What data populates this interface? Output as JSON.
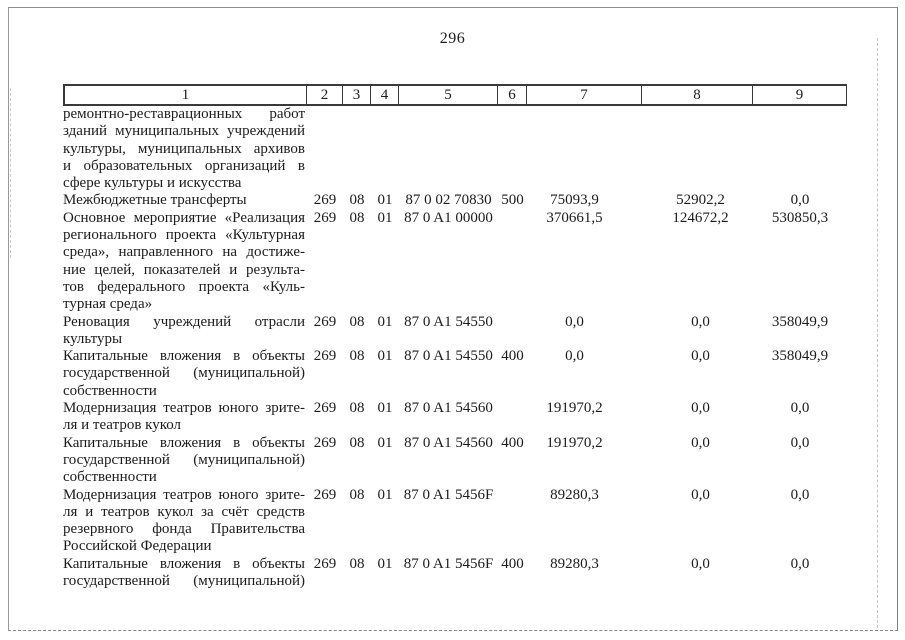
{
  "page": {
    "number": "296"
  },
  "colors": {
    "text": "#1c1c1c",
    "table_border": "#3a3a3a",
    "scan_frame": "#8e8e8e",
    "background": "#ffffff"
  },
  "table": {
    "header": [
      "1",
      "2",
      "3",
      "4",
      "5",
      "6",
      "7",
      "8",
      "9"
    ],
    "rows": [
      {
        "name_lines": [
          "ремонтно-реставрационных работ",
          "зданий муниципальных учреждений",
          "культуры, муниципальных архивов",
          "и образовательных организаций в",
          "сфере культуры и искусства"
        ],
        "col2": "",
        "col3": "",
        "col4": "",
        "col5": "",
        "col6": "",
        "col7": "",
        "col8": "",
        "col9": ""
      },
      {
        "name_lines": [
          "Межбюджетные трансферты"
        ],
        "col2": "269",
        "col3": "08",
        "col4": "01",
        "col5": "87 0 02 70830",
        "col6": "500",
        "col7": "75093,9",
        "col8": "52902,2",
        "col9": "0,0"
      },
      {
        "name_lines": [
          "Основное мероприятие «Реализация",
          "регионального проекта «Культурная",
          "среда», направленного на достиже-",
          "ние целей, показателей и результа-",
          "тов федерального проекта «Куль-",
          "турная среда»"
        ],
        "col2": "269",
        "col3": "08",
        "col4": "01",
        "col5": "87 0 A1 00000",
        "col6": "",
        "col7": "370661,5",
        "col8": "124672,2",
        "col9": "530850,3"
      },
      {
        "name_lines": [
          "Реновация учреждений отрасли",
          "культуры"
        ],
        "col2": "269",
        "col3": "08",
        "col4": "01",
        "col5": "87 0 A1 54550",
        "col6": "",
        "col7": "0,0",
        "col8": "0,0",
        "col9": "358049,9"
      },
      {
        "name_lines": [
          "Капитальные вложения в объекты",
          "государственной (муниципальной)",
          "собственности"
        ],
        "col2": "269",
        "col3": "08",
        "col4": "01",
        "col5": "87 0 A1 54550",
        "col6": "400",
        "col7": "0,0",
        "col8": "0,0",
        "col9": "358049,9"
      },
      {
        "name_lines": [
          "Модернизация театров юного зрите-",
          "ля и театров кукол"
        ],
        "col2": "269",
        "col3": "08",
        "col4": "01",
        "col5": "87 0 A1 54560",
        "col6": "",
        "col7": "191970,2",
        "col8": "0,0",
        "col9": "0,0"
      },
      {
        "name_lines": [
          "Капитальные вложения в объекты",
          "государственной (муниципальной)",
          "собственности"
        ],
        "col2": "269",
        "col3": "08",
        "col4": "01",
        "col5": "87 0 A1 54560",
        "col6": "400",
        "col7": "191970,2",
        "col8": "0,0",
        "col9": "0,0"
      },
      {
        "name_lines": [
          "Модернизация театров юного зрите-",
          "ля и театров кукол за счёт средств",
          "резервного фонда Правительства",
          "Российской Федерации"
        ],
        "col2": "269",
        "col3": "08",
        "col4": "01",
        "col5": "87 0 A1 5456F",
        "col6": "",
        "col7": "89280,3",
        "col8": "0,0",
        "col9": "0,0"
      },
      {
        "name_lines": [
          "Капитальные вложения в объекты",
          "государственной (муниципальной)"
        ],
        "last_line_justified": true,
        "col2": "269",
        "col3": "08",
        "col4": "01",
        "col5": "87 0 A1 5456F",
        "col6": "400",
        "col7": "89280,3",
        "col8": "0,0",
        "col9": "0,0"
      }
    ]
  }
}
